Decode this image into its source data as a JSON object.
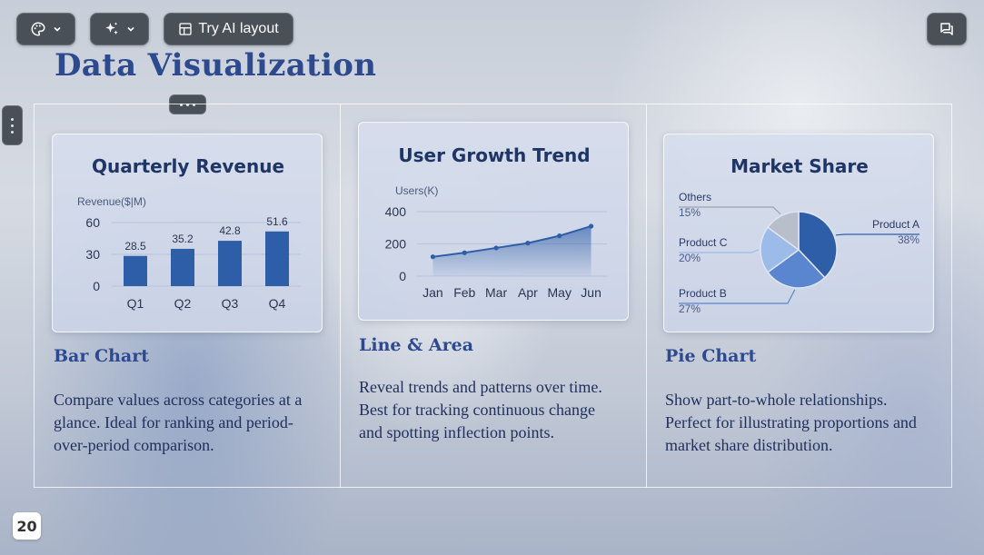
{
  "toolbar": {
    "theme_icon": "palette-icon",
    "magic_icon": "sparkles-icon",
    "ai_layout_icon": "layout-icon",
    "ai_layout_label": "Try AI layout",
    "comments_icon": "comments-icon"
  },
  "slide": {
    "title": "Data Visualization",
    "page_number": "20",
    "sections": [
      {
        "heading": "Bar Chart",
        "description": "Compare values across categories at a glance. Ideal for ranking and period-over-period comparison."
      },
      {
        "heading": "Line & Area",
        "description": "Reveal trends and patterns over time. Best for tracking continuous change and spotting inflection points."
      },
      {
        "heading": "Pie Chart",
        "description": "Show part-to-whole relationships. Perfect for illustrating proportions and market share distribution."
      }
    ]
  },
  "colors": {
    "accent": "#2d4a8f",
    "bar": "#2f5ea8",
    "pie": [
      "#2f5ea8",
      "#5a86d0",
      "#9dbbe8",
      "#b8bfcb"
    ]
  },
  "chart_data": [
    {
      "type": "bar",
      "title": "Quarterly Revenue",
      "ylabel": "Revenue($|M)",
      "categories": [
        "Q1",
        "Q2",
        "Q3",
        "Q4"
      ],
      "values": [
        28.5,
        35.2,
        42.8,
        51.6
      ],
      "value_labels": [
        "28.5",
        "35.2",
        "42.8",
        "51.6"
      ],
      "yticks": [
        "0",
        "30",
        "60"
      ],
      "ytick_values": [
        0,
        30,
        60
      ],
      "ylim": [
        0,
        60
      ],
      "grid": true
    },
    {
      "type": "area",
      "title": "User Growth Trend",
      "ylabel": "Users(K)",
      "categories": [
        "Jan",
        "Feb",
        "Mar",
        "Apr",
        "May",
        "Jun"
      ],
      "values": [
        120,
        145,
        175,
        205,
        250,
        310
      ],
      "yticks": [
        "0",
        "200",
        "400"
      ],
      "ytick_values": [
        0,
        200,
        400
      ],
      "ylim": [
        0,
        400
      ],
      "grid": true
    },
    {
      "type": "pie",
      "title": "Market Share",
      "slices": [
        {
          "label": "Product A",
          "value": 38,
          "pct": "38%"
        },
        {
          "label": "Product B",
          "value": 27,
          "pct": "27%"
        },
        {
          "label": "Product C",
          "value": 20,
          "pct": "20%"
        },
        {
          "label": "Others",
          "value": 15,
          "pct": "15%"
        }
      ]
    }
  ]
}
